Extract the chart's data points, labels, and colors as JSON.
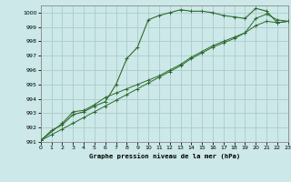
{
  "bg_color": "#cce8e8",
  "grid_color": "#aacccc",
  "line_color": "#2d6a2d",
  "xlabel": "Graphe pression niveau de la mer (hPa)",
  "xlim": [
    0,
    23
  ],
  "ylim": [
    991,
    1000.5
  ],
  "yticks": [
    991,
    992,
    993,
    994,
    995,
    996,
    997,
    998,
    999,
    1000
  ],
  "xticks": [
    0,
    1,
    2,
    3,
    4,
    5,
    6,
    7,
    8,
    9,
    10,
    11,
    12,
    13,
    14,
    15,
    16,
    17,
    18,
    19,
    20,
    21,
    22,
    23
  ],
  "series1_x": [
    0,
    1,
    2,
    3,
    4,
    5,
    6,
    7,
    8,
    9,
    10,
    11,
    12,
    13,
    14,
    15,
    16,
    17,
    18,
    19,
    20,
    21,
    22,
    23
  ],
  "series1_y": [
    991.1,
    991.8,
    992.2,
    992.9,
    993.1,
    993.5,
    993.8,
    995.0,
    996.8,
    997.6,
    999.5,
    999.8,
    1000.0,
    1000.2,
    1000.1,
    1000.1,
    1000.0,
    999.8,
    999.7,
    999.6,
    1000.3,
    1000.1,
    999.3,
    999.4
  ],
  "series2_x": [
    0,
    2,
    3,
    4,
    5,
    6,
    7,
    8,
    9,
    10,
    11,
    12,
    13,
    14,
    15,
    16,
    17,
    18,
    19,
    20,
    21,
    22,
    23
  ],
  "series2_y": [
    991.1,
    992.3,
    993.1,
    993.2,
    993.6,
    994.1,
    994.4,
    994.7,
    995.0,
    995.3,
    995.6,
    996.0,
    996.4,
    996.9,
    997.3,
    997.7,
    998.0,
    998.3,
    998.6,
    999.6,
    999.9,
    999.5,
    999.4
  ],
  "series3_x": [
    0,
    1,
    2,
    3,
    4,
    5,
    6,
    7,
    8,
    9,
    10,
    11,
    12,
    13,
    14,
    15,
    16,
    17,
    18,
    19,
    20,
    21,
    22,
    23
  ],
  "series3_y": [
    991.1,
    991.5,
    991.9,
    992.3,
    992.7,
    993.1,
    993.5,
    993.9,
    994.3,
    994.7,
    995.1,
    995.5,
    995.9,
    996.3,
    996.8,
    997.2,
    997.6,
    997.9,
    998.2,
    998.6,
    999.1,
    999.4,
    999.3,
    999.4
  ]
}
